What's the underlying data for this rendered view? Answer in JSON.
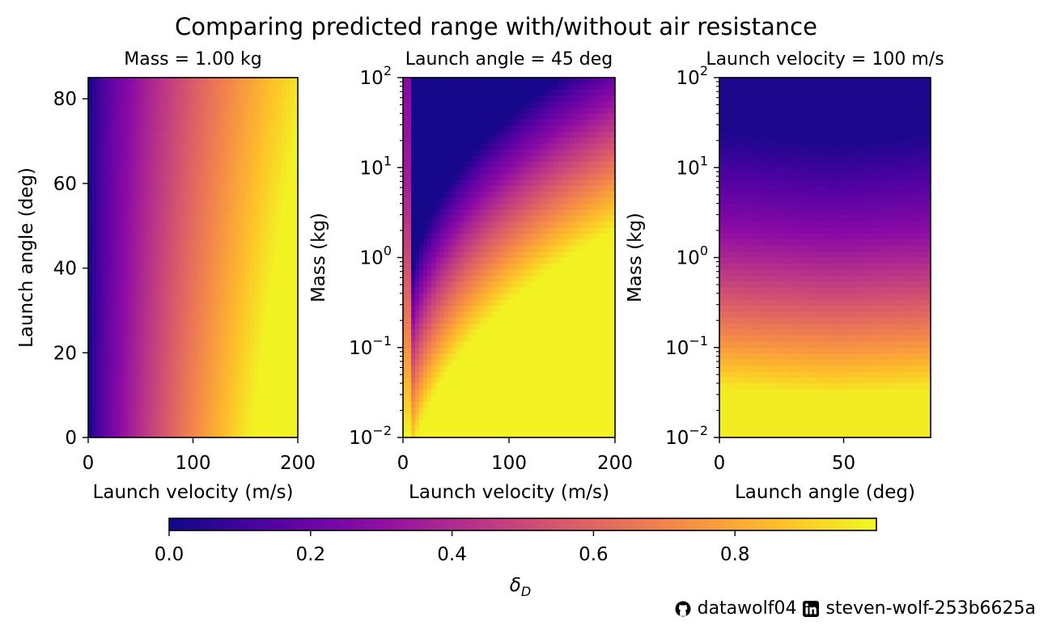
{
  "suptitle": "Comparing predicted range with/without air resistance",
  "colorbar": {
    "label": "δ_D",
    "label_main": "δ",
    "label_sub": "D",
    "ticks": [
      "0.0",
      "0.2",
      "0.4",
      "0.6",
      "0.8"
    ],
    "tick_values": [
      0.0,
      0.2,
      0.4,
      0.6,
      0.8
    ],
    "range": [
      0,
      1
    ],
    "colormap": "plasma"
  },
  "footer": {
    "github_user": "datawolf04",
    "linkedin_user": "steven-wolf-253b6625a",
    "github_icon": "github-icon",
    "linkedin_icon": "linkedin-icon"
  },
  "colors": {
    "plasma": [
      "#0d0887",
      "#5302a3",
      "#8b0aa5",
      "#b83289",
      "#db5c68",
      "#f48849",
      "#febd2a",
      "#f0f921"
    ]
  },
  "chart_data": [
    {
      "type": "heatmap",
      "title": "Mass = 1.00 kg",
      "xlabel": "Launch velocity (m/s)",
      "ylabel": "Launch angle (deg)",
      "xlim": [
        0,
        200
      ],
      "ylim": [
        0,
        85
      ],
      "xscale": "linear",
      "yscale": "linear",
      "xticks": [
        "0",
        "100",
        "200"
      ],
      "xtick_values": [
        0,
        100,
        200
      ],
      "yticks": [
        "0",
        "20",
        "40",
        "60",
        "80"
      ],
      "ytick_values": [
        0,
        20,
        40,
        60,
        80
      ],
      "colorbar_value_range": [
        0,
        1
      ]
    },
    {
      "type": "heatmap",
      "title": "Launch angle = 45 deg",
      "xlabel": "Launch velocity (m/s)",
      "ylabel": "Mass (kg)",
      "xlim": [
        0,
        200
      ],
      "ylim": [
        0.01,
        100
      ],
      "xscale": "linear",
      "yscale": "log",
      "xticks": [
        "0",
        "100",
        "200"
      ],
      "xtick_values": [
        0,
        100,
        200
      ],
      "yticks": [
        {
          "base": "10",
          "exp": "−2"
        },
        {
          "base": "10",
          "exp": "−1"
        },
        {
          "base": "10",
          "exp": "0"
        },
        {
          "base": "10",
          "exp": "1"
        },
        {
          "base": "10",
          "exp": "2"
        }
      ],
      "ytick_values": [
        0.01,
        0.1,
        1,
        10,
        100
      ],
      "colorbar_value_range": [
        0,
        1
      ]
    },
    {
      "type": "heatmap",
      "title": "Launch velocity = 100 m/s",
      "xlabel": "Launch angle (deg)",
      "ylabel": "Mass (kg)",
      "xlim": [
        0,
        85
      ],
      "ylim": [
        0.01,
        100
      ],
      "xscale": "linear",
      "yscale": "log",
      "xticks": [
        "0",
        "50"
      ],
      "xtick_values": [
        0,
        50
      ],
      "yticks": [
        {
          "base": "10",
          "exp": "−2"
        },
        {
          "base": "10",
          "exp": "−1"
        },
        {
          "base": "10",
          "exp": "0"
        },
        {
          "base": "10",
          "exp": "1"
        },
        {
          "base": "10",
          "exp": "2"
        }
      ],
      "ytick_values": [
        0.01,
        0.1,
        1,
        10,
        100
      ],
      "colorbar_value_range": [
        0,
        1
      ]
    }
  ]
}
